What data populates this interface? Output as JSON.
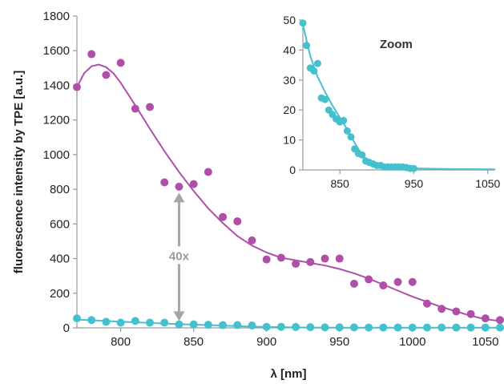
{
  "colors": {
    "series_purple": "#b04fa7",
    "series_cyan": "#45c0cf",
    "axis": "#9a9a9a",
    "arrow": "#a6a6a6",
    "text": "#222222"
  },
  "chart_data": [
    {
      "type": "scatter",
      "title": "",
      "xlabel": "λ [nm]",
      "ylabel": "fluorescence intensity by TPE [a.u.]",
      "xlim": [
        770,
        1060
      ],
      "ylim": [
        0,
        1800
      ],
      "xticks": [
        800,
        850,
        900,
        950,
        1000,
        1050
      ],
      "yticks": [
        0,
        200,
        400,
        600,
        800,
        1000,
        1200,
        1400,
        1600,
        1800
      ],
      "grid": false,
      "annotation": {
        "label": "40x",
        "x": 840,
        "y_from": 40,
        "y_to": 780
      },
      "series": [
        {
          "color": "#b04fa7",
          "points": [
            {
              "x": 770,
              "y": 1390
            },
            {
              "x": 780,
              "y": 1580
            },
            {
              "x": 790,
              "y": 1460
            },
            {
              "x": 800,
              "y": 1530
            },
            {
              "x": 810,
              "y": 1265
            },
            {
              "x": 820,
              "y": 1275
            },
            {
              "x": 830,
              "y": 840
            },
            {
              "x": 840,
              "y": 815
            },
            {
              "x": 850,
              "y": 830
            },
            {
              "x": 860,
              "y": 900
            },
            {
              "x": 870,
              "y": 640
            },
            {
              "x": 880,
              "y": 615
            },
            {
              "x": 890,
              "y": 505
            },
            {
              "x": 900,
              "y": 395
            },
            {
              "x": 910,
              "y": 405
            },
            {
              "x": 920,
              "y": 370
            },
            {
              "x": 930,
              "y": 380
            },
            {
              "x": 940,
              "y": 400
            },
            {
              "x": 950,
              "y": 400
            },
            {
              "x": 960,
              "y": 255
            },
            {
              "x": 970,
              "y": 280
            },
            {
              "x": 980,
              "y": 245
            },
            {
              "x": 990,
              "y": 265
            },
            {
              "x": 1000,
              "y": 265
            },
            {
              "x": 1010,
              "y": 140
            },
            {
              "x": 1020,
              "y": 110
            },
            {
              "x": 1030,
              "y": 95
            },
            {
              "x": 1040,
              "y": 80
            },
            {
              "x": 1050,
              "y": 55
            },
            {
              "x": 1060,
              "y": 45
            }
          ],
          "fit": [
            {
              "x": 770,
              "y": 1390
            },
            {
              "x": 775,
              "y": 1470
            },
            {
              "x": 780,
              "y": 1510
            },
            {
              "x": 785,
              "y": 1520
            },
            {
              "x": 790,
              "y": 1505
            },
            {
              "x": 795,
              "y": 1470
            },
            {
              "x": 800,
              "y": 1415
            },
            {
              "x": 810,
              "y": 1285
            },
            {
              "x": 820,
              "y": 1150
            },
            {
              "x": 830,
              "y": 1020
            },
            {
              "x": 840,
              "y": 900
            },
            {
              "x": 850,
              "y": 790
            },
            {
              "x": 860,
              "y": 690
            },
            {
              "x": 870,
              "y": 605
            },
            {
              "x": 880,
              "y": 530
            },
            {
              "x": 890,
              "y": 475
            },
            {
              "x": 900,
              "y": 435
            },
            {
              "x": 910,
              "y": 405
            },
            {
              "x": 920,
              "y": 390
            },
            {
              "x": 930,
              "y": 375
            },
            {
              "x": 940,
              "y": 360
            },
            {
              "x": 950,
              "y": 340
            },
            {
              "x": 960,
              "y": 315
            },
            {
              "x": 970,
              "y": 285
            },
            {
              "x": 980,
              "y": 250
            },
            {
              "x": 990,
              "y": 215
            },
            {
              "x": 1000,
              "y": 180
            },
            {
              "x": 1010,
              "y": 150
            },
            {
              "x": 1020,
              "y": 120
            },
            {
              "x": 1030,
              "y": 95
            },
            {
              "x": 1040,
              "y": 70
            },
            {
              "x": 1050,
              "y": 50
            },
            {
              "x": 1060,
              "y": 40
            }
          ]
        },
        {
          "color": "#45c0cf",
          "points": [
            {
              "x": 770,
              "y": 55
            },
            {
              "x": 780,
              "y": 45
            },
            {
              "x": 790,
              "y": 35
            },
            {
              "x": 800,
              "y": 30
            },
            {
              "x": 810,
              "y": 40
            },
            {
              "x": 820,
              "y": 30
            },
            {
              "x": 830,
              "y": 30
            },
            {
              "x": 840,
              "y": 20
            },
            {
              "x": 850,
              "y": 20
            },
            {
              "x": 860,
              "y": 18
            },
            {
              "x": 870,
              "y": 16
            },
            {
              "x": 880,
              "y": 16
            },
            {
              "x": 890,
              "y": 14
            },
            {
              "x": 900,
              "y": 6
            },
            {
              "x": 910,
              "y": 6
            },
            {
              "x": 920,
              "y": 5
            },
            {
              "x": 930,
              "y": 4
            },
            {
              "x": 940,
              "y": 3
            },
            {
              "x": 950,
              "y": 3
            },
            {
              "x": 960,
              "y": 3
            },
            {
              "x": 970,
              "y": 2
            },
            {
              "x": 980,
              "y": 2
            },
            {
              "x": 990,
              "y": 2
            },
            {
              "x": 1000,
              "y": 2
            },
            {
              "x": 1010,
              "y": 2
            },
            {
              "x": 1020,
              "y": 2
            },
            {
              "x": 1030,
              "y": 2
            },
            {
              "x": 1040,
              "y": 2
            },
            {
              "x": 1050,
              "y": 2
            },
            {
              "x": 1060,
              "y": 2
            }
          ],
          "fit": [
            {
              "x": 770,
              "y": 48
            },
            {
              "x": 800,
              "y": 36
            },
            {
              "x": 830,
              "y": 25
            },
            {
              "x": 860,
              "y": 16
            },
            {
              "x": 890,
              "y": 7
            },
            {
              "x": 920,
              "y": 3
            },
            {
              "x": 950,
              "y": 1
            },
            {
              "x": 1000,
              "y": 1
            },
            {
              "x": 1060,
              "y": 1
            }
          ]
        }
      ]
    },
    {
      "type": "scatter",
      "title": "Zoom",
      "xlabel": "",
      "ylabel": "",
      "xlim": [
        800,
        1060
      ],
      "ylim": [
        0,
        50
      ],
      "xticks": [
        850,
        950,
        1050
      ],
      "yticks": [
        0,
        10,
        20,
        30,
        40,
        50
      ],
      "grid": false,
      "series": [
        {
          "color": "#45c0cf",
          "points": [
            {
              "x": 800,
              "y": 49
            },
            {
              "x": 805,
              "y": 41.5
            },
            {
              "x": 810,
              "y": 34
            },
            {
              "x": 815,
              "y": 33
            },
            {
              "x": 820,
              "y": 35.5
            },
            {
              "x": 825,
              "y": 24
            },
            {
              "x": 830,
              "y": 23.5
            },
            {
              "x": 835,
              "y": 20
            },
            {
              "x": 840,
              "y": 18.5
            },
            {
              "x": 845,
              "y": 17
            },
            {
              "x": 850,
              "y": 16
            },
            {
              "x": 855,
              "y": 16.5
            },
            {
              "x": 860,
              "y": 13
            },
            {
              "x": 865,
              "y": 11
            },
            {
              "x": 870,
              "y": 7
            },
            {
              "x": 875,
              "y": 5.5
            },
            {
              "x": 880,
              "y": 5
            },
            {
              "x": 885,
              "y": 3
            },
            {
              "x": 890,
              "y": 2.5
            },
            {
              "x": 895,
              "y": 2
            },
            {
              "x": 900,
              "y": 1.5
            },
            {
              "x": 905,
              "y": 1.5
            },
            {
              "x": 910,
              "y": 1
            },
            {
              "x": 915,
              "y": 1
            },
            {
              "x": 920,
              "y": 1
            },
            {
              "x": 925,
              "y": 1
            },
            {
              "x": 930,
              "y": 1
            },
            {
              "x": 935,
              "y": 1
            },
            {
              "x": 940,
              "y": 0.8
            },
            {
              "x": 945,
              "y": 0.5
            },
            {
              "x": 950,
              "y": 0.5
            }
          ],
          "fit": [
            {
              "x": 800,
              "y": 48.5
            },
            {
              "x": 810,
              "y": 38
            },
            {
              "x": 820,
              "y": 31
            },
            {
              "x": 830,
              "y": 26
            },
            {
              "x": 840,
              "y": 21.5
            },
            {
              "x": 850,
              "y": 17.5
            },
            {
              "x": 860,
              "y": 13.5
            },
            {
              "x": 870,
              "y": 9
            },
            {
              "x": 880,
              "y": 5
            },
            {
              "x": 890,
              "y": 2.5
            },
            {
              "x": 900,
              "y": 1.2
            },
            {
              "x": 920,
              "y": 0.7
            },
            {
              "x": 950,
              "y": 0.5
            },
            {
              "x": 1000,
              "y": 0.3
            },
            {
              "x": 1060,
              "y": 0.2
            }
          ]
        }
      ]
    }
  ]
}
